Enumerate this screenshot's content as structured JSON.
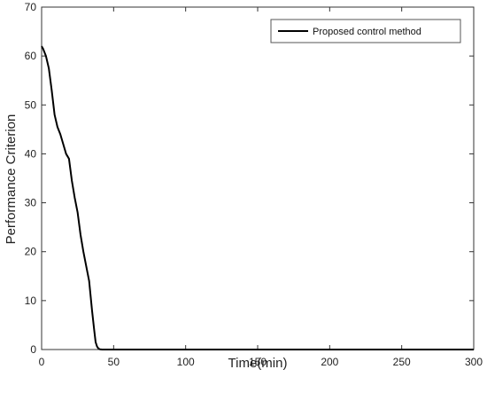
{
  "chart_data": {
    "type": "line",
    "title": "",
    "xlabel": "Time(min)",
    "ylabel": "Performance Criterion",
    "xlim": [
      0,
      300
    ],
    "ylim": [
      0,
      70
    ],
    "xticks": [
      0,
      50,
      100,
      150,
      200,
      250,
      300
    ],
    "yticks": [
      0,
      10,
      20,
      30,
      40,
      50,
      60,
      70
    ],
    "xtick_labels": [
      "0",
      "50",
      "100",
      "150",
      "200",
      "250",
      "300"
    ],
    "ytick_labels": [
      "0",
      "10",
      "20",
      "30",
      "40",
      "50",
      "60",
      "70"
    ],
    "grid": false,
    "legend": {
      "position": "top-right",
      "entries": [
        "Proposed control method"
      ]
    },
    "series": [
      {
        "name": "Proposed control method",
        "color": "#000000",
        "x": [
          0,
          1,
          3,
          5,
          7,
          9,
          11,
          13,
          15,
          17,
          19,
          21,
          23,
          25,
          27,
          29,
          31,
          33,
          35,
          36.5,
          37.5,
          38.5,
          39.5,
          40.5,
          42,
          45,
          50,
          100,
          150,
          200,
          250,
          300
        ],
        "y": [
          62,
          61.5,
          60,
          57.5,
          53,
          48,
          45.5,
          44,
          42,
          40,
          39,
          34.5,
          31,
          28,
          23.5,
          20,
          17,
          14,
          8,
          4,
          1.5,
          0.6,
          0.2,
          0.05,
          0,
          0,
          0,
          0,
          0,
          0,
          0,
          0
        ]
      }
    ]
  }
}
